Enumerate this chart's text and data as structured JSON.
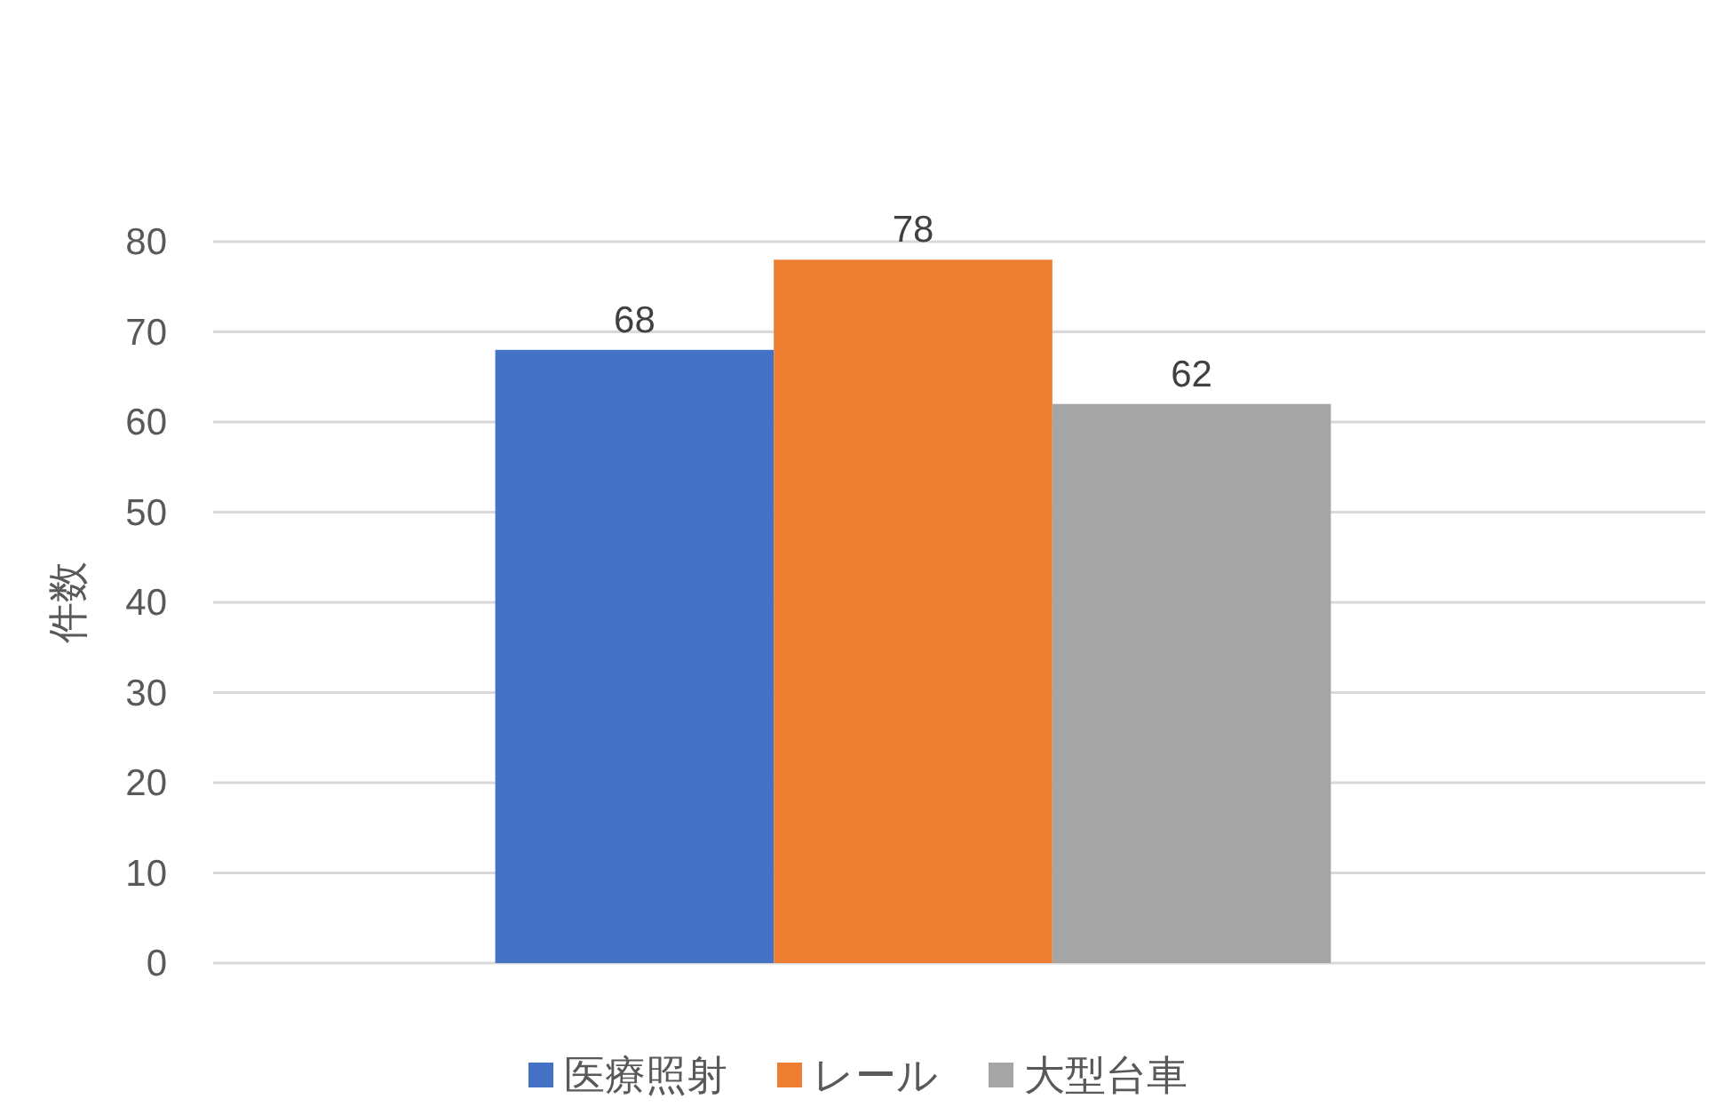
{
  "chart_data": {
    "type": "bar",
    "ylabel": "件数",
    "categories": [
      null
    ],
    "series": [
      {
        "name": "医療照射",
        "color": "#4472c4",
        "values": [
          68
        ]
      },
      {
        "name": "レール",
        "color": "#ed7d31",
        "values": [
          78
        ]
      },
      {
        "name": "大型台車",
        "color": "#a5a5a5",
        "values": [
          62
        ]
      }
    ],
    "ylim": [
      0,
      80
    ],
    "yticks": [
      0,
      10,
      20,
      30,
      40,
      50,
      60,
      70,
      80
    ],
    "grid": "y",
    "legend": "bottom",
    "data_labels": true
  }
}
